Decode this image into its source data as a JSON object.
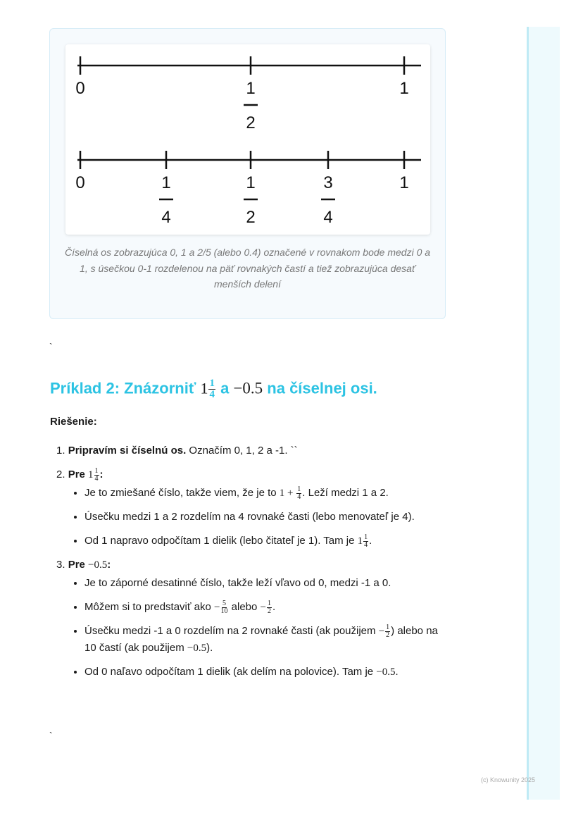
{
  "figure": {
    "line1_labels": [
      {
        "text": "0"
      },
      {
        "num": "1",
        "den": "2"
      },
      {
        "text": "1"
      }
    ],
    "line2_labels": [
      {
        "text": "0"
      },
      {
        "num": "1",
        "den": "4"
      },
      {
        "num": "1",
        "den": "2"
      },
      {
        "num": "3",
        "den": "4"
      },
      {
        "text": "1"
      }
    ],
    "caption": "Číselná os zobrazujúca 0, 1 a 2/5 (alebo 0.4) označené v rovnakom bode medzi 0 a 1, s úsečkou 0-1 rozdelenou na päť rovnakých častí a tiež zobrazujúca desať menších delení"
  },
  "backtick": "`",
  "heading": {
    "pre": "Príklad 2: Znázorniť ",
    "whole": "1",
    "num": "1",
    "den": "4",
    "mid": " a ",
    "neg": "−0.5",
    "post": " na číselnej osi."
  },
  "solution_label": "Riešenie:",
  "steps": {
    "s1": {
      "n": "1.",
      "bold": "Pripravím si číselnú os.",
      "text": " Označím 0, 1, 2 a -1. ``"
    },
    "s2": {
      "n": "2.",
      "bold": "Pre ",
      "whole": "1",
      "num": "1",
      "den": "4",
      "colon": ":",
      "b1a": "Je to zmiešané číslo, takže viem, že je to ",
      "b1m": "1 + ",
      "b1num": "1",
      "b1den": "4",
      "b1b": ". Leží medzi 1 a 2.",
      "b2": "Úsečku medzi 1 a 2 rozdelím na 4 rovnaké časti (lebo menovateľ je 4).",
      "b3a": "Od 1 napravo odpočítam 1 dielik (lebo čitateľ je 1). Tam je ",
      "b3whole": "1",
      "b3num": "1",
      "b3den": "4",
      "b3b": "."
    },
    "s3": {
      "n": "3.",
      "bold": "Pre ",
      "math": "−0.5",
      "colon": ":",
      "b1": "Je to záporné desatinné číslo, takže leží vľavo od 0, medzi -1 a 0.",
      "b2a": "Môžem si to predstaviť ako ",
      "b2m1": "−",
      "b2n1": "5",
      "b2d1": "10",
      "b2b": " alebo ",
      "b2m2": "−",
      "b2n2": "1",
      "b2d2": "2",
      "b2c": ".",
      "b3a": "Úsečku medzi -1 a 0 rozdelím na 2 rovnaké časti (ak použijem ",
      "b3m": "−",
      "b3n": "1",
      "b3d": "2",
      "b3b": ") alebo na 10 častí (ak použijem ",
      "b3math": "−0.5",
      "b3c": ").",
      "b4a": "Od 0 naľavo odpočítam 1 dielik (ak delím na polovice). Tam je ",
      "b4math": "−0.5",
      "b4b": "."
    }
  },
  "footer": "(c) Knowunity 2025",
  "colors": {
    "heading": "#2cc3e3",
    "sidebar": "#eefafd",
    "sidebar_border": "#bfeaf5"
  }
}
